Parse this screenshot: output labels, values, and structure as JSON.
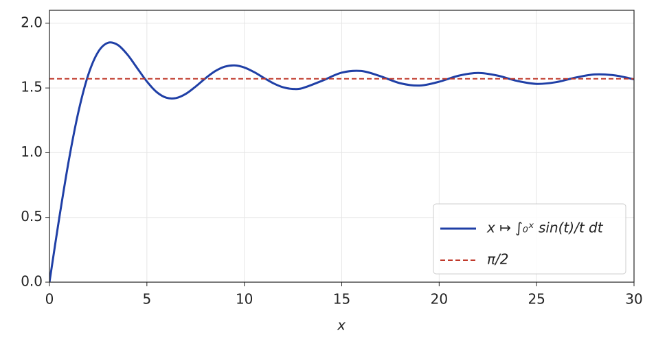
{
  "chart_data": {
    "type": "line",
    "xlabel": "x",
    "x": [
      0,
      0.5,
      1,
      1.5,
      2,
      2.5,
      3,
      3.5,
      4,
      4.5,
      5,
      5.5,
      6,
      6.5,
      7,
      7.5,
      8,
      8.5,
      9,
      9.5,
      10,
      10.5,
      11,
      11.5,
      12,
      12.5,
      13,
      14,
      15,
      16,
      17,
      18,
      19,
      20,
      21,
      22,
      23,
      24,
      25,
      26,
      27,
      28,
      29,
      30
    ],
    "series": [
      {
        "name": "x ↦ ∫₀ˣ sin(t)/t dt",
        "color": "#1f3fa6",
        "values": [
          0,
          0.4931,
          0.9461,
          1.3247,
          1.6054,
          1.7785,
          1.8487,
          1.8331,
          1.7582,
          1.6541,
          1.5499,
          1.4687,
          1.4247,
          1.4222,
          1.4546,
          1.5107,
          1.5742,
          1.6296,
          1.665,
          1.6745,
          1.6583,
          1.6228,
          1.5783,
          1.5355,
          1.505,
          1.4924,
          1.4994,
          1.5562,
          1.6182,
          1.6313,
          1.5901,
          1.5366,
          1.5186,
          1.5482,
          1.5949,
          1.6161,
          1.5955,
          1.5547,
          1.5315,
          1.5449,
          1.5803,
          1.6047,
          1.5973,
          1.5668
        ]
      }
    ],
    "hlines": [
      {
        "name": "π/2",
        "value": 1.5708,
        "color": "#c0392b",
        "dashed": true
      }
    ],
    "xlim": [
      0,
      30
    ],
    "xticks": [
      0,
      5,
      10,
      15,
      20,
      25,
      30
    ],
    "ylim": [
      0,
      2.1
    ],
    "yticks": [
      {
        "value": 0,
        "label": "0.0"
      },
      {
        "value": 0.5,
        "label": "0.5"
      },
      {
        "value": 1,
        "label": "1.0"
      },
      {
        "value": 1.5,
        "label": "1.5"
      },
      {
        "value": 2,
        "label": "2.0"
      }
    ],
    "grid": true,
    "legend": "lower right"
  }
}
